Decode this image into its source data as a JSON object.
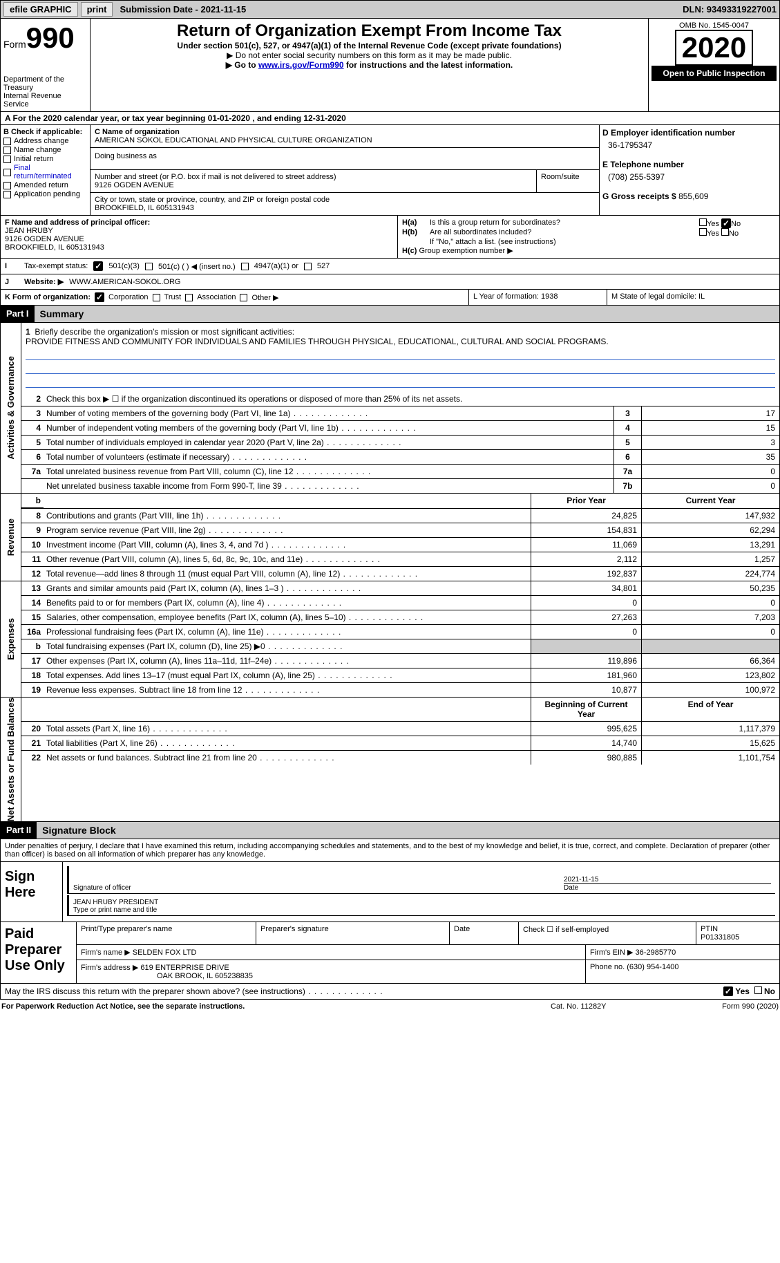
{
  "topbar": {
    "efile": "efile GRAPHIC",
    "print": "print",
    "sub_date_label": "Submission Date - 2021-11-15",
    "dln": "DLN: 93493319227001"
  },
  "header": {
    "form_word": "Form",
    "form_num": "990",
    "dept": "Department of the Treasury\nInternal Revenue Service",
    "title": "Return of Organization Exempt From Income Tax",
    "sub1": "Under section 501(c), 527, or 4947(a)(1) of the Internal Revenue Code (except private foundations)",
    "sub2": "▶ Do not enter social security numbers on this form as it may be made public.",
    "sub3_pre": "▶ Go to ",
    "sub3_link": "www.irs.gov/Form990",
    "sub3_post": " for instructions and the latest information.",
    "omb": "OMB No. 1545-0047",
    "year": "2020",
    "open": "Open to Public Inspection"
  },
  "tax_year": "A For the 2020 calendar year, or tax year beginning 01-01-2020   , and ending 12-31-2020",
  "box_b": {
    "label": "B Check if applicable:",
    "addr": "Address change",
    "name": "Name change",
    "init": "Initial return",
    "final": "Final return/terminated",
    "amend": "Amended return",
    "app": "Application pending"
  },
  "box_c": {
    "label": "C Name of organization",
    "name": "AMERICAN SOKOL EDUCATIONAL AND PHYSICAL CULTURE ORGANIZATION",
    "dba_label": "Doing business as",
    "addr_label": "Number and street (or P.O. box if mail is not delivered to street address)",
    "addr": "9126 OGDEN AVENUE",
    "room_label": "Room/suite",
    "city_label": "City or town, state or province, country, and ZIP or foreign postal code",
    "city": "BROOKFIELD, IL  605131943"
  },
  "box_d": {
    "label": "D Employer identification number",
    "ein": "36-1795347",
    "tel_label": "E Telephone number",
    "tel": "(708) 255-5397",
    "gross_label": "G Gross receipts $",
    "gross": "855,609"
  },
  "box_f": {
    "label": "F Name and address of principal officer:",
    "name": "JEAN HRUBY",
    "addr1": "9126 OGDEN AVENUE",
    "addr2": "BROOKFIELD, IL  605131943"
  },
  "box_h": {
    "ha": "Is this a group return for subordinates?",
    "hb": "Are all subordinates included?",
    "hb_note": "If \"No,\" attach a list. (see instructions)",
    "hc": "Group exemption number ▶",
    "yes": "Yes",
    "no": "No"
  },
  "row_i": {
    "label": "Tax-exempt status:",
    "o1": "501(c)(3)",
    "o2": "501(c) (  ) ◀ (insert no.)",
    "o3": "4947(a)(1) or",
    "o4": "527"
  },
  "row_j": {
    "label": "Website: ▶",
    "val": "WWW.AMERICAN-SOKOL.ORG"
  },
  "row_k": {
    "klabel": "K Form of organization:",
    "corp": "Corporation",
    "trust": "Trust",
    "assoc": "Association",
    "other": "Other ▶",
    "l": "L Year of formation: 1938",
    "m": "M State of legal domicile: IL"
  },
  "part1": {
    "tag": "Part I",
    "title": "Summary",
    "briefly_label": "Briefly describe the organization's mission or most significant activities:",
    "briefly": "PROVIDE FITNESS AND COMMUNITY FOR INDIVIDUALS AND FAMILIES THROUGH PHYSICAL, EDUCATIONAL, CULTURAL AND SOCIAL PROGRAMS.",
    "line2": "Check this box ▶ ☐  if the organization discontinued its operations or disposed of more than 25% of its net assets.",
    "rows_gov": [
      {
        "n": "3",
        "d": "Number of voting members of the governing body (Part VI, line 1a)",
        "b": "3",
        "v": "17"
      },
      {
        "n": "4",
        "d": "Number of independent voting members of the governing body (Part VI, line 1b)",
        "b": "4",
        "v": "15"
      },
      {
        "n": "5",
        "d": "Total number of individuals employed in calendar year 2020 (Part V, line 2a)",
        "b": "5",
        "v": "3"
      },
      {
        "n": "6",
        "d": "Total number of volunteers (estimate if necessary)",
        "b": "6",
        "v": "35"
      },
      {
        "n": "7a",
        "d": "Total unrelated business revenue from Part VIII, column (C), line 12",
        "b": "7a",
        "v": "0"
      },
      {
        "n": "",
        "d": "Net unrelated business taxable income from Form 990-T, line 39",
        "b": "7b",
        "v": "0"
      }
    ],
    "hdr_prior": "Prior Year",
    "hdr_current": "Current Year",
    "revenue": [
      {
        "n": "8",
        "d": "Contributions and grants (Part VIII, line 1h)",
        "p": "24,825",
        "c": "147,932"
      },
      {
        "n": "9",
        "d": "Program service revenue (Part VIII, line 2g)",
        "p": "154,831",
        "c": "62,294"
      },
      {
        "n": "10",
        "d": "Investment income (Part VIII, column (A), lines 3, 4, and 7d )",
        "p": "11,069",
        "c": "13,291"
      },
      {
        "n": "11",
        "d": "Other revenue (Part VIII, column (A), lines 5, 6d, 8c, 9c, 10c, and 11e)",
        "p": "2,112",
        "c": "1,257"
      },
      {
        "n": "12",
        "d": "Total revenue—add lines 8 through 11 (must equal Part VIII, column (A), line 12)",
        "p": "192,837",
        "c": "224,774"
      }
    ],
    "expenses": [
      {
        "n": "13",
        "d": "Grants and similar amounts paid (Part IX, column (A), lines 1–3 )",
        "p": "34,801",
        "c": "50,235"
      },
      {
        "n": "14",
        "d": "Benefits paid to or for members (Part IX, column (A), line 4)",
        "p": "0",
        "c": "0"
      },
      {
        "n": "15",
        "d": "Salaries, other compensation, employee benefits (Part IX, column (A), lines 5–10)",
        "p": "27,263",
        "c": "7,203"
      },
      {
        "n": "16a",
        "d": "Professional fundraising fees (Part IX, column (A), line 11e)",
        "p": "0",
        "c": "0"
      },
      {
        "n": "b",
        "d": "Total fundraising expenses (Part IX, column (D), line 25) ▶0",
        "p": "",
        "c": "",
        "shaded": true
      },
      {
        "n": "17",
        "d": "Other expenses (Part IX, column (A), lines 11a–11d, 11f–24e)",
        "p": "119,896",
        "c": "66,364"
      },
      {
        "n": "18",
        "d": "Total expenses. Add lines 13–17 (must equal Part IX, column (A), line 25)",
        "p": "181,960",
        "c": "123,802"
      },
      {
        "n": "19",
        "d": "Revenue less expenses. Subtract line 18 from line 12",
        "p": "10,877",
        "c": "100,972"
      }
    ],
    "hdr_begin": "Beginning of Current Year",
    "hdr_end": "End of Year",
    "netassets": [
      {
        "n": "20",
        "d": "Total assets (Part X, line 16)",
        "p": "995,625",
        "c": "1,117,379"
      },
      {
        "n": "21",
        "d": "Total liabilities (Part X, line 26)",
        "p": "14,740",
        "c": "15,625"
      },
      {
        "n": "22",
        "d": "Net assets or fund balances. Subtract line 21 from line 20",
        "p": "980,885",
        "c": "1,101,754"
      }
    ],
    "vtabs": {
      "gov": "Activities & Governance",
      "rev": "Revenue",
      "exp": "Expenses",
      "net": "Net Assets or Fund Balances"
    }
  },
  "part2": {
    "tag": "Part II",
    "title": "Signature Block",
    "intro": "Under penalties of perjury, I declare that I have examined this return, including accompanying schedules and statements, and to the best of my knowledge and belief, it is true, correct, and complete. Declaration of preparer (other than officer) is based on all information of which preparer has any knowledge.",
    "sign_here": "Sign Here",
    "sig_of_officer": "Signature of officer",
    "date": "Date",
    "sig_date": "2021-11-15",
    "officer": "JEAN HRUBY  PRESIDENT",
    "type_name": "Type or print name and title",
    "paid": "Paid Preparer Use Only",
    "p_name": "Print/Type preparer's name",
    "p_sig": "Preparer's signature",
    "p_date": "Date",
    "p_check": "Check ☐ if self-employed",
    "ptin_label": "PTIN",
    "ptin": "P01331805",
    "firm_name_label": "Firm's name   ▶",
    "firm_name": "SELDEN FOX LTD",
    "firm_ein_label": "Firm's EIN ▶",
    "firm_ein": "36-2985770",
    "firm_addr_label": "Firm's address ▶",
    "firm_addr": "619 ENTERPRISE DRIVE",
    "firm_addr2": "OAK BROOK, IL  605238835",
    "phone_label": "Phone no.",
    "phone": "(630) 954-1400",
    "irs_q": "May the IRS discuss this return with the preparer shown above? (see instructions)"
  },
  "footer": {
    "left": "For Paperwork Reduction Act Notice, see the separate instructions.",
    "mid": "Cat. No. 11282Y",
    "right": "Form 990 (2020)"
  }
}
